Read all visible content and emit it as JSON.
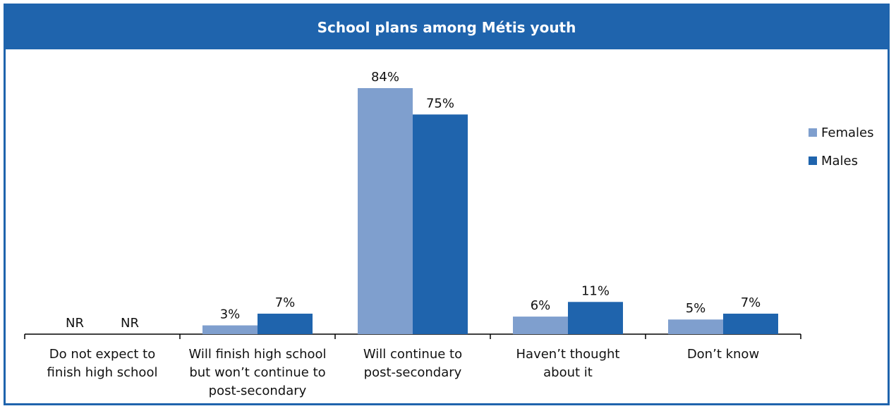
{
  "chart_data": {
    "type": "bar",
    "title": "School plans among Métis youth",
    "categories": [
      [
        "Do not expect to",
        "finish high school"
      ],
      [
        "Will finish high school",
        "but won’t continue to",
        "post-secondary"
      ],
      [
        "Will continue to",
        "post-secondary"
      ],
      [
        "Haven’t thought",
        "about it"
      ],
      [
        "Don’t know"
      ]
    ],
    "series": [
      {
        "name": "Females",
        "color": "#7f9fce",
        "values": [
          null,
          3,
          84,
          6,
          5
        ],
        "labels": [
          "NR",
          "3%",
          "84%",
          "6%",
          "5%"
        ]
      },
      {
        "name": "Males",
        "color": "#1f64ad",
        "values": [
          null,
          7,
          75,
          11,
          7
        ],
        "labels": [
          "NR",
          "7%",
          "75%",
          "11%",
          "7%"
        ]
      }
    ],
    "ylim": [
      0,
      100
    ],
    "grid": false,
    "legend": "right"
  }
}
